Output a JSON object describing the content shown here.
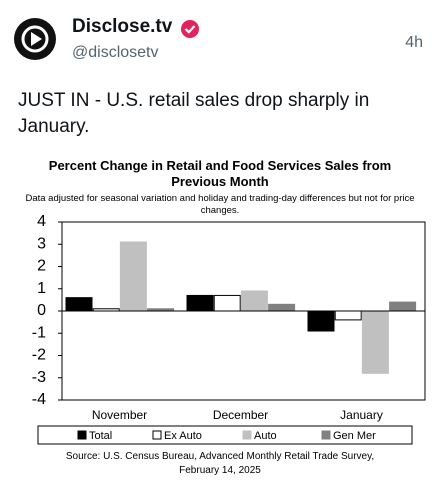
{
  "tweet": {
    "name": "Disclose.tv",
    "handle": "@disclosetv",
    "time": "4h",
    "text": "JUST IN - U.S. retail sales drop sharply in January."
  },
  "chart_data": {
    "type": "bar",
    "title": "Percent Change in Retail and Food Services Sales from Previous Month",
    "subtitle": "Data adjusted for seasonal variation and holiday and trading-day differences but not for price changes.",
    "source": "Source: U.S. Census Bureau, Advanced Monthly Retail Trade Survey, February 14, 2025",
    "categories": [
      "November",
      "December",
      "January"
    ],
    "series": [
      {
        "name": "Total",
        "color": "#000000",
        "values": [
          0.6,
          0.7,
          -0.9
        ]
      },
      {
        "name": "Ex Auto",
        "color": "#ffffff",
        "values": [
          0.1,
          0.7,
          -0.4
        ]
      },
      {
        "name": "Auto",
        "color": "#c0c0c0",
        "values": [
          3.1,
          0.9,
          -2.8
        ]
      },
      {
        "name": "Gen Mer",
        "color": "#808080",
        "values": [
          0.1,
          0.3,
          0.4
        ]
      }
    ],
    "ylim": [
      -4,
      4
    ],
    "yticks": [
      -4,
      -3,
      -2,
      -1,
      0,
      1,
      2,
      3,
      4
    ],
    "grid": false,
    "legend": "bottom"
  }
}
